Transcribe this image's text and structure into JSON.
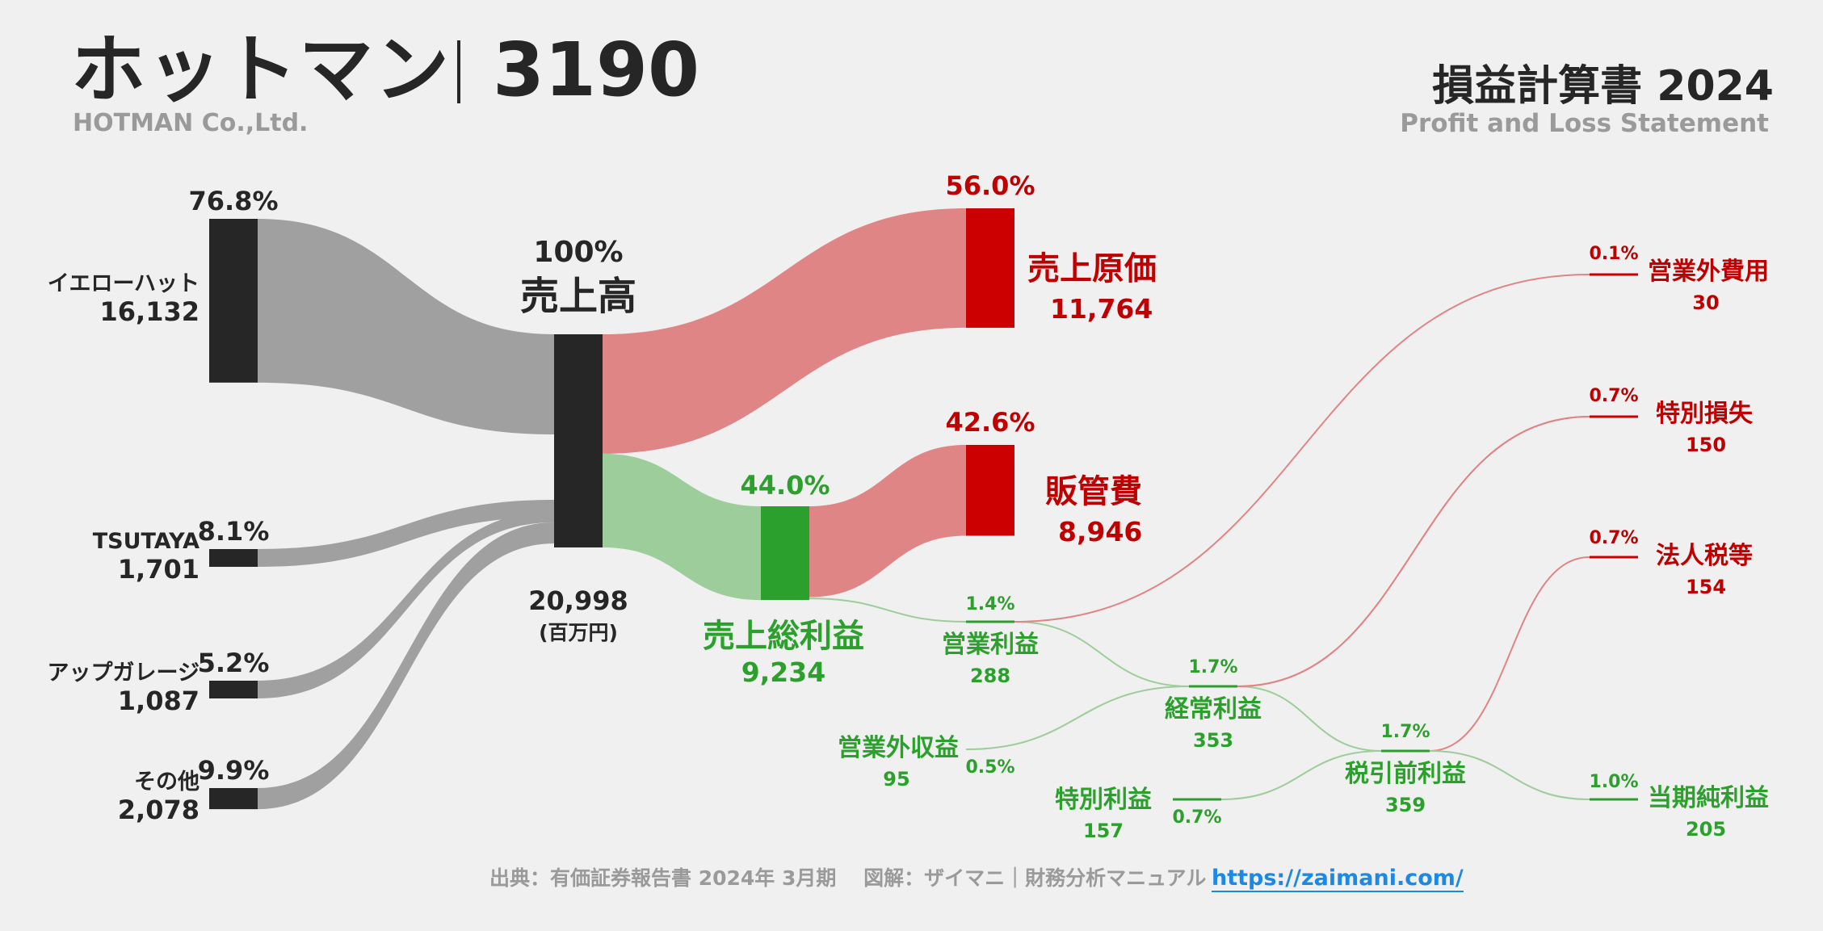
{
  "header": {
    "company": "ホットマン",
    "code": "3190",
    "company_en": "HOTMAN Co.,Ltd.",
    "statement_title": "損益計算書 2024",
    "statement_subtitle": "Profit and Loss Statement"
  },
  "footer": {
    "source": "出典：有価証券報告書 2024年 3月期　 図解：ザイマニ｜財務分析マニュアル",
    "link": "https://zaimani.com/"
  },
  "colors": {
    "dark": "#262626",
    "cost_red": "#cc0000",
    "cost_flow": "#e08585",
    "profit_green": "#2ca02c",
    "profit_flow": "#9dcd9a",
    "revenue_flow": "#a0a0a0",
    "text_red": "#c00000"
  },
  "chart_data": {
    "type": "sankey",
    "unit": "(百万円)",
    "segments": [
      {
        "label": "イエローハット",
        "value": 16132,
        "value_text": "16,132",
        "pct": "76.8%"
      },
      {
        "label": "TSUTAYA",
        "value": 1701,
        "value_text": "1,701",
        "pct": "8.1%"
      },
      {
        "label": "アップガレージ",
        "value": 1087,
        "value_text": "1,087",
        "pct": "5.2%"
      },
      {
        "label": "その他",
        "value": 2078,
        "value_text": "2,078",
        "pct": "9.9%"
      }
    ],
    "revenue": {
      "label": "売上高",
      "value": 20998,
      "value_text": "20,998",
      "pct": "100%"
    },
    "cost_of_sales": {
      "label": "売上原価",
      "value": 11764,
      "value_text": "11,764",
      "pct": "56.0%"
    },
    "gross_profit": {
      "label": "売上総利益",
      "value": 9234,
      "value_text": "9,234",
      "pct": "44.0%"
    },
    "sga": {
      "label": "販管費",
      "value": 8946,
      "value_text": "8,946",
      "pct": "42.6%"
    },
    "operating_income": {
      "label": "営業利益",
      "value": 288,
      "value_text": "288",
      "pct": "1.4%"
    },
    "non_operating_income": {
      "label": "営業外収益",
      "value": 95,
      "value_text": "95",
      "pct": "0.5%"
    },
    "non_operating_expenses": {
      "label": "営業外費用",
      "value": 30,
      "value_text": "30",
      "pct": "0.1%"
    },
    "ordinary_income": {
      "label": "経常利益",
      "value": 353,
      "value_text": "353",
      "pct": "1.7%"
    },
    "extraordinary_income": {
      "label": "特別利益",
      "value": 157,
      "value_text": "157",
      "pct": "0.7%"
    },
    "extraordinary_loss": {
      "label": "特別損失",
      "value": 150,
      "value_text": "150",
      "pct": "0.7%"
    },
    "pretax_income": {
      "label": "税引前利益",
      "value": 359,
      "value_text": "359",
      "pct": "1.7%"
    },
    "income_taxes": {
      "label": "法人税等",
      "value": 154,
      "value_text": "154",
      "pct": "0.7%"
    },
    "net_income": {
      "label": "当期純利益",
      "value": 205,
      "value_text": "205",
      "pct": "1.0%"
    }
  }
}
